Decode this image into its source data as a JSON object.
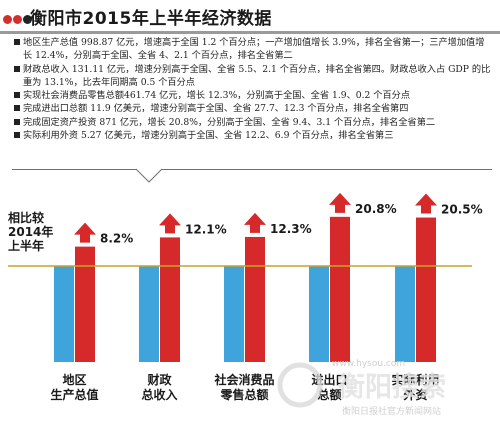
{
  "header": {
    "title": "衡阳市2015年上半年经济数据",
    "dot_colors": [
      "#d32f2f",
      "#d32f2f",
      "#222222"
    ]
  },
  "notes": [
    "地区生产总值 998.87 亿元，增速高于全国 1.2 个百分点；一产增加值增长 3.9%，排名全省第一；三产增加值增长 12.4%，分别高于全国、全省 4、2.1 个百分点，排名全省第二",
    "财政总收入 131.11 亿元，增速分别高于全国、全省 5.5、2.1 个百分点，排名全省第四。财政总收入占 GDP 的比重为 13.1%，比去年同期高 0.5 个百分点",
    "实现社会消费品零售总额461.74 亿元，增长 12.3%，分别高于全国、全省 1.9、0.2 个百分点",
    "完成进出口总额 11.9 亿美元，增速分别高于全国、全省 27.7、12.3 个百分点，排名全省第四",
    "完成固定资产投资 871 亿元，增长 20.8%，分别高于全国、全省 9.4、3.1 个百分点，排名全省第二",
    "实际利用外资 5.27 亿美元，增速分别高于全国、全省 12.2、6.9 个百分点，排名全省第三"
  ],
  "chart_data": {
    "type": "bar",
    "ylabel": "相比较\n2014年\n上半年",
    "categories": [
      "地区\n生产总值",
      "财政\n总收入",
      "社会消费品\n零售总额",
      "进出口\n总额",
      "实际利用\n外资"
    ],
    "series": [
      {
        "values": [
          0,
          0,
          0,
          0,
          0
        ],
        "color": "#3fa4dc"
      },
      {
        "values": [
          8.2,
          12.1,
          12.3,
          20.8,
          20.5
        ],
        "color": "#d62a2a"
      }
    ],
    "value_labels": [
      "8.2%",
      "12.1%",
      "12.3%",
      "20.8%",
      "20.5%"
    ],
    "baseline_color": "#c9a227",
    "arrow_color": "#d62a2a"
  },
  "watermark": {
    "logo_text": "衡阳搜索",
    "site": "www.hysou.com",
    "sub": "衡阳日报社官方新闻网站"
  }
}
